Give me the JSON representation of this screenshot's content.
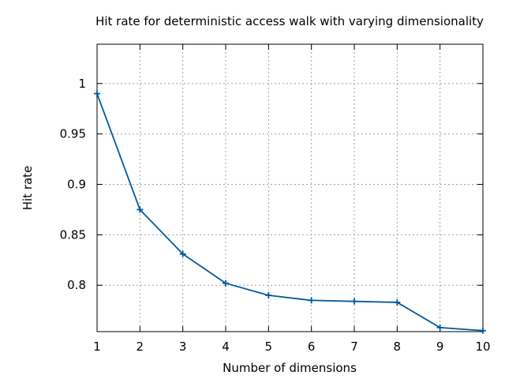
{
  "chart_data": {
    "type": "line",
    "title": "Hit rate for deterministic access walk with varying dimensionality",
    "xlabel": "Number of dimensions",
    "ylabel": "Hit rate",
    "x": [
      1,
      2,
      3,
      4,
      5,
      6,
      7,
      8,
      9,
      10
    ],
    "xlim": [
      1,
      10
    ],
    "ylim": [
      0.754,
      1.039
    ],
    "xticks": [
      "1",
      "2",
      "3",
      "4",
      "5",
      "6",
      "7",
      "8",
      "9",
      "10"
    ],
    "yticks": [
      {
        "value": 0.8,
        "label": "0.8"
      },
      {
        "value": 0.85,
        "label": "0.85"
      },
      {
        "value": 0.9,
        "label": "0.9"
      },
      {
        "value": 0.95,
        "label": "0.95"
      },
      {
        "value": 1.0,
        "label": "1"
      }
    ],
    "grid": true,
    "series": [
      {
        "values": [
          0.99,
          0.875,
          0.831,
          0.802,
          0.79,
          0.785,
          0.784,
          0.783,
          0.758,
          0.755
        ],
        "color": "#005a9c",
        "marker": "plus"
      }
    ]
  }
}
